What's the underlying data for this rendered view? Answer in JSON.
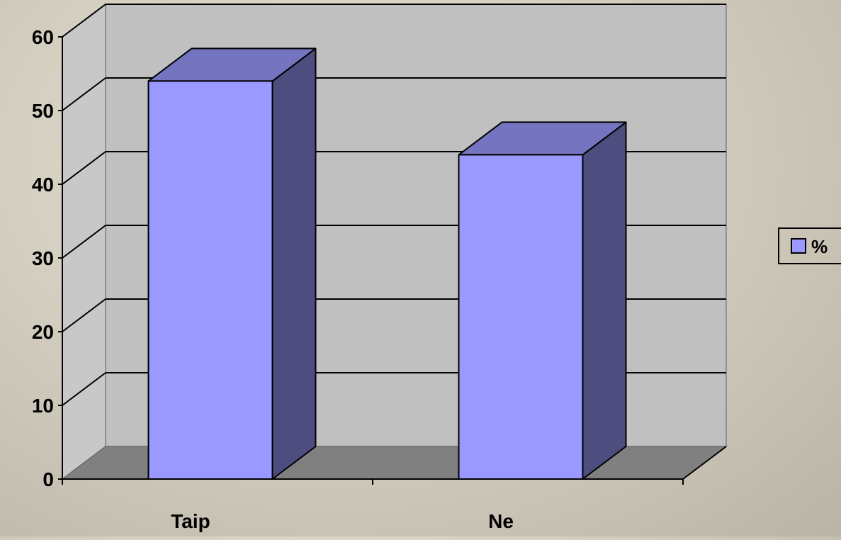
{
  "chart_data": {
    "type": "bar",
    "categories": [
      "Taip",
      "Ne"
    ],
    "series": [
      {
        "name": "%",
        "values": [
          54,
          44
        ]
      }
    ],
    "ylim": [
      0,
      60
    ],
    "yticks": [
      0,
      10,
      20,
      30,
      40,
      50,
      60
    ],
    "grid": true,
    "legend": "right",
    "style": "3d-column"
  },
  "colors": {
    "bar_front": "#9999ff",
    "bar_top": "#7474c0",
    "bar_side": "#4d4d80",
    "plot_back_wall": "#c0c0c0",
    "plot_side_wall": "#c8c8c8",
    "plot_floor": "#808080",
    "gridline": "#000000"
  }
}
